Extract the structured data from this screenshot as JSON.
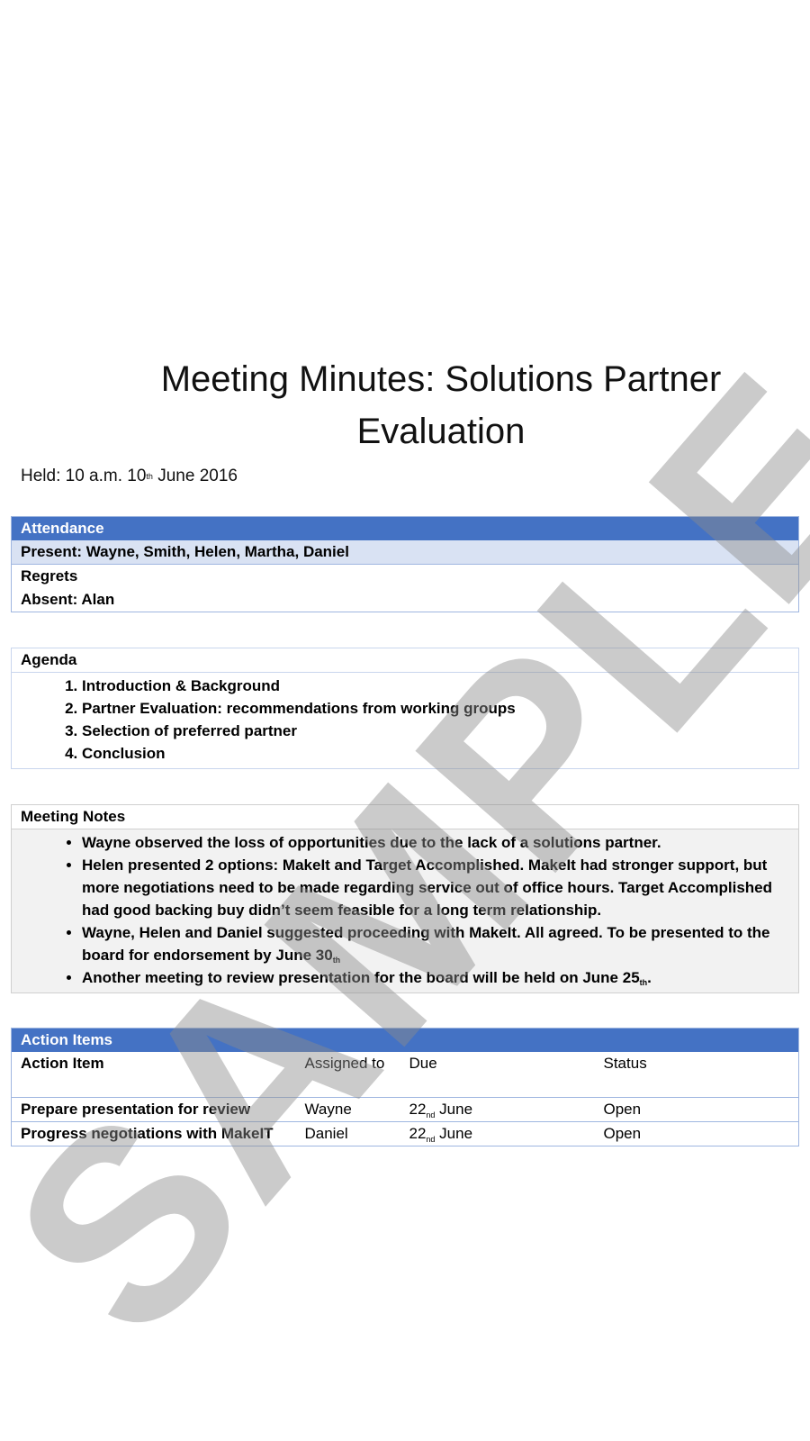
{
  "title": "Meeting Minutes: Solutions Partner Evaluation",
  "held": {
    "prefix": "Held: 10 a.m. 10",
    "sup": "th",
    "suffix": " June 2016"
  },
  "attendance": {
    "header": "Attendance",
    "present": "Present: Wayne, Smith, Helen, Martha, Daniel",
    "regrets": "Regrets",
    "absent": "Absent: Alan"
  },
  "agenda": {
    "header": "Agenda",
    "items": [
      "Introduction & Background",
      "Partner Evaluation: recommendations from working groups",
      "Selection of preferred partner",
      "Conclusion"
    ]
  },
  "notes": {
    "header": "Meeting Notes",
    "items": [
      "Wayne observed the loss of opportunities due to the lack of a solutions partner.",
      "Helen presented 2 options: MakeIt and Target Accomplished. MakeIt had stronger support, but more negotiations need to be made regarding service out of office hours. Target Accomplished had good backing buy didn’t seem feasible for a long term relationship.",
      "Wayne, Helen and Daniel suggested proceeding with MakeIt. All agreed. To be presented to the board for endorsement by June 30",
      "Another meeting to review presentation for the board will be held on June 25"
    ],
    "item3_sup": "th",
    "item4_sup": "th",
    "item4_end": "."
  },
  "action_items": {
    "header": "Action Items",
    "columns": [
      "Action Item",
      "Assigned to",
      "Due",
      "Status"
    ],
    "rows": [
      {
        "item": "Prepare presentation for review",
        "assigned": "Wayne",
        "due_day": "22",
        "due_sup": "nd",
        "due_month": " June",
        "status": "Open"
      },
      {
        "item": "Progress negotiations with MakeIT",
        "assigned": "Daniel",
        "due_day": "22",
        "due_sup": "nd",
        "due_month": " June",
        "status": "Open"
      }
    ]
  },
  "watermark": "SAMPLE"
}
